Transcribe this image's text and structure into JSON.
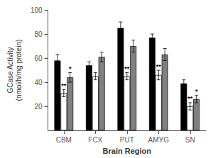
{
  "chart_data": {
    "type": "bar",
    "categories": [
      "CBM",
      "FCX",
      "PUT",
      "AMYG",
      "SN"
    ],
    "xlabel": "Brain Region",
    "ylabel": "GCase Activity\n(nmol/h/mg protein)",
    "ylim": [
      0,
      100
    ],
    "yticks": [
      20,
      40,
      60,
      80,
      100
    ],
    "grid": false,
    "series": [
      {
        "color": "black",
        "values": [
          58,
          54,
          85,
          77,
          39
        ],
        "errors": [
          5,
          3,
          5,
          3,
          3
        ]
      },
      {
        "color": "white",
        "values": [
          31,
          45,
          45,
          46,
          20
        ],
        "errors": [
          3,
          3,
          3,
          4,
          3
        ],
        "annotations": [
          "**",
          null,
          "**",
          "**",
          "**"
        ]
      },
      {
        "color": "#808080",
        "values": [
          44,
          61,
          70,
          63,
          26
        ],
        "errors": [
          4,
          4,
          5,
          5,
          3
        ],
        "annotations": [
          "*",
          null,
          null,
          null,
          "*"
        ]
      }
    ]
  }
}
